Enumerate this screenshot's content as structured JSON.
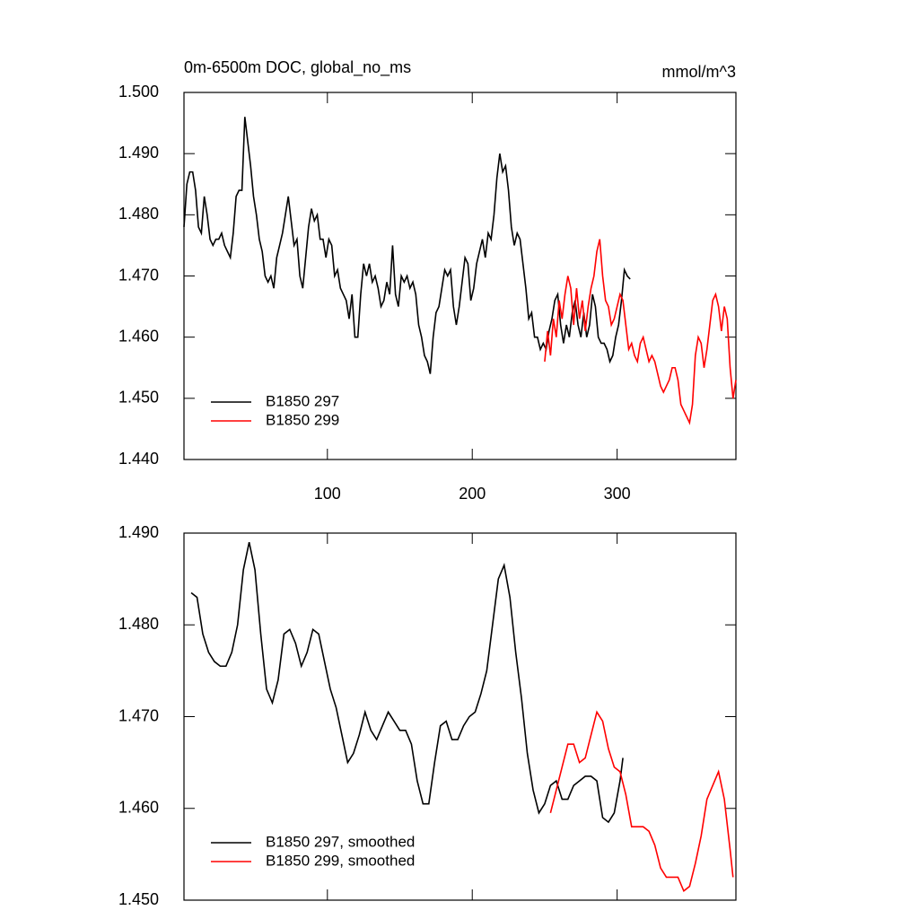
{
  "chart_data": [
    {
      "type": "line",
      "title": "0m-6500m DOC, global_no_ms",
      "subtitle": "mmol/m^3",
      "xlim": [
        1,
        382
      ],
      "xticks": [
        100,
        200,
        300
      ],
      "ylim": [
        1.44,
        1.5
      ],
      "yticks": [
        {
          "value": 1.44,
          "label": "1.440"
        },
        {
          "value": 1.45,
          "label": "1.450"
        },
        {
          "value": 1.46,
          "label": "1.460"
        },
        {
          "value": 1.47,
          "label": "1.470"
        },
        {
          "value": 1.48,
          "label": "1.480"
        },
        {
          "value": 1.49,
          "label": "1.490"
        },
        {
          "value": 1.5,
          "label": "1.500"
        }
      ],
      "legend": "lower left",
      "series": [
        {
          "name": "B1850 297",
          "color": "#000000",
          "x": [
            1,
            3,
            5,
            7,
            9,
            11,
            13,
            15,
            17,
            19,
            21,
            23,
            25,
            27,
            29,
            31,
            33,
            35,
            37,
            39,
            41,
            43,
            45,
            47,
            49,
            51,
            53,
            55,
            57,
            59,
            61,
            63,
            65,
            67,
            69,
            71,
            73,
            75,
            77,
            79,
            81,
            83,
            85,
            87,
            89,
            91,
            93,
            95,
            97,
            99,
            101,
            103,
            105,
            107,
            109,
            111,
            113,
            115,
            117,
            119,
            121,
            123,
            125,
            127,
            129,
            131,
            133,
            135,
            137,
            139,
            141,
            143,
            145,
            147,
            149,
            151,
            153,
            155,
            157,
            159,
            161,
            163,
            165,
            167,
            169,
            171,
            173,
            175,
            177,
            179,
            181,
            183,
            185,
            187,
            189,
            191,
            193,
            195,
            197,
            199,
            201,
            203,
            205,
            207,
            209,
            211,
            213,
            215,
            217,
            219,
            221,
            223,
            225,
            227,
            229,
            231,
            233,
            235,
            237,
            239,
            241,
            243,
            245,
            247,
            249,
            251,
            253,
            255,
            257,
            259,
            261,
            263,
            265,
            267,
            269,
            271,
            273,
            275,
            277,
            279,
            281,
            283,
            285,
            287,
            289,
            291,
            293,
            295,
            297,
            299,
            301,
            303,
            305,
            307,
            309
          ],
          "values": [
            1.478,
            1.485,
            1.487,
            1.487,
            1.484,
            1.478,
            1.477,
            1.483,
            1.48,
            1.476,
            1.475,
            1.476,
            1.476,
            1.477,
            1.475,
            1.474,
            1.473,
            1.477,
            1.483,
            1.484,
            1.484,
            1.496,
            1.492,
            1.488,
            1.483,
            1.48,
            1.476,
            1.474,
            1.47,
            1.469,
            1.47,
            1.468,
            1.473,
            1.475,
            1.477,
            1.48,
            1.483,
            1.479,
            1.475,
            1.476,
            1.47,
            1.468,
            1.473,
            1.478,
            1.481,
            1.479,
            1.48,
            1.476,
            1.476,
            1.473,
            1.476,
            1.475,
            1.47,
            1.471,
            1.468,
            1.467,
            1.466,
            1.463,
            1.467,
            1.46,
            1.46,
            1.467,
            1.472,
            1.47,
            1.472,
            1.469,
            1.47,
            1.468,
            1.465,
            1.466,
            1.469,
            1.467,
            1.475,
            1.467,
            1.465,
            1.47,
            1.469,
            1.47,
            1.468,
            1.469,
            1.467,
            1.462,
            1.46,
            1.457,
            1.456,
            1.454,
            1.46,
            1.464,
            1.465,
            1.468,
            1.471,
            1.47,
            1.471,
            1.465,
            1.462,
            1.465,
            1.469,
            1.473,
            1.472,
            1.466,
            1.468,
            1.472,
            1.474,
            1.476,
            1.473,
            1.477,
            1.476,
            1.48,
            1.486,
            1.49,
            1.487,
            1.488,
            1.484,
            1.478,
            1.475,
            1.477,
            1.476,
            1.472,
            1.468,
            1.463,
            1.464,
            1.46,
            1.46,
            1.458,
            1.459,
            1.458,
            1.461,
            1.463,
            1.466,
            1.467,
            1.462,
            1.459,
            1.462,
            1.46,
            1.464,
            1.466,
            1.462,
            1.46,
            1.464,
            1.46,
            1.462,
            1.467,
            1.465,
            1.46,
            1.459,
            1.459,
            1.458,
            1.456,
            1.457,
            1.46,
            1.462,
            1.466,
            1.471,
            1.47,
            1.4695
          ]
        },
        {
          "name": "B1850 299",
          "color": "#ff0000",
          "x": [
            250,
            252,
            254,
            256,
            258,
            260,
            262,
            264,
            266,
            268,
            270,
            272,
            274,
            276,
            278,
            280,
            282,
            284,
            286,
            288,
            290,
            292,
            294,
            296,
            298,
            300,
            302,
            304,
            306,
            308,
            310,
            312,
            314,
            316,
            318,
            320,
            322,
            324,
            326,
            328,
            330,
            332,
            334,
            336,
            338,
            340,
            342,
            344,
            346,
            348,
            350,
            352,
            354,
            356,
            358,
            360,
            362,
            364,
            366,
            368,
            370,
            372,
            374,
            376,
            378,
            380,
            382
          ],
          "values": [
            1.456,
            1.461,
            1.457,
            1.463,
            1.46,
            1.466,
            1.463,
            1.467,
            1.47,
            1.468,
            1.462,
            1.468,
            1.463,
            1.466,
            1.461,
            1.465,
            1.468,
            1.47,
            1.474,
            1.476,
            1.47,
            1.466,
            1.465,
            1.462,
            1.463,
            1.465,
            1.467,
            1.466,
            1.462,
            1.458,
            1.459,
            1.457,
            1.456,
            1.459,
            1.46,
            1.458,
            1.456,
            1.457,
            1.456,
            1.454,
            1.452,
            1.451,
            1.452,
            1.453,
            1.455,
            1.455,
            1.453,
            1.449,
            1.448,
            1.447,
            1.446,
            1.449,
            1.457,
            1.46,
            1.459,
            1.455,
            1.458,
            1.462,
            1.466,
            1.467,
            1.465,
            1.461,
            1.465,
            1.463,
            1.455,
            1.45,
            1.453
          ]
        }
      ]
    },
    {
      "type": "line",
      "xlim": [
        1,
        382
      ],
      "ylim": [
        1.45,
        1.49
      ],
      "yticks": [
        {
          "value": 1.45,
          "label": "1.450"
        },
        {
          "value": 1.46,
          "label": "1.460"
        },
        {
          "value": 1.47,
          "label": "1.470"
        },
        {
          "value": 1.48,
          "label": "1.480"
        },
        {
          "value": 1.49,
          "label": "1.490"
        }
      ],
      "legend": "lower left",
      "series": [
        {
          "name": "B1850 297, smoothed",
          "color": "#000000",
          "x": [
            6,
            10,
            14,
            18,
            22,
            26,
            30,
            34,
            38,
            42,
            46,
            50,
            54,
            58,
            62,
            66,
            70,
            74,
            78,
            82,
            86,
            90,
            94,
            98,
            102,
            106,
            110,
            114,
            118,
            122,
            126,
            130,
            134,
            138,
            142,
            146,
            150,
            154,
            158,
            162,
            166,
            170,
            174,
            178,
            182,
            186,
            190,
            194,
            198,
            202,
            206,
            210,
            214,
            218,
            222,
            226,
            230,
            234,
            238,
            242,
            246,
            250,
            254,
            258,
            262,
            266,
            270,
            274,
            278,
            282,
            286,
            290,
            294,
            298,
            302,
            304
          ],
          "values": [
            1.4835,
            1.483,
            1.479,
            1.477,
            1.476,
            1.4755,
            1.4755,
            1.477,
            1.48,
            1.486,
            1.489,
            1.486,
            1.479,
            1.473,
            1.4715,
            1.474,
            1.479,
            1.4795,
            1.478,
            1.4755,
            1.477,
            1.4795,
            1.479,
            1.476,
            1.473,
            1.471,
            1.468,
            1.465,
            1.466,
            1.468,
            1.4705,
            1.4685,
            1.4675,
            1.469,
            1.4705,
            1.4695,
            1.4685,
            1.4685,
            1.467,
            1.463,
            1.4605,
            1.4605,
            1.465,
            1.469,
            1.4695,
            1.4675,
            1.4675,
            1.469,
            1.47,
            1.4705,
            1.4725,
            1.475,
            1.48,
            1.485,
            1.4865,
            1.483,
            1.477,
            1.472,
            1.466,
            1.462,
            1.4595,
            1.4605,
            1.4625,
            1.463,
            1.461,
            1.461,
            1.4625,
            1.463,
            1.4635,
            1.4635,
            1.463,
            1.459,
            1.4585,
            1.4595,
            1.463,
            1.4655
          ]
        },
        {
          "name": "B1850 299, smoothed",
          "color": "#ff0000",
          "x": [
            254,
            258,
            262,
            266,
            270,
            274,
            278,
            282,
            286,
            290,
            294,
            298,
            302,
            306,
            310,
            314,
            318,
            322,
            326,
            330,
            334,
            338,
            342,
            346,
            350,
            354,
            358,
            362,
            366,
            370,
            374,
            378,
            380
          ],
          "values": [
            1.4595,
            1.462,
            1.4645,
            1.467,
            1.467,
            1.465,
            1.4655,
            1.468,
            1.4705,
            1.4695,
            1.4665,
            1.4645,
            1.464,
            1.4615,
            1.458,
            1.458,
            1.458,
            1.4575,
            1.456,
            1.4535,
            1.4525,
            1.4525,
            1.4525,
            1.451,
            1.4515,
            1.454,
            1.457,
            1.461,
            1.4625,
            1.464,
            1.461,
            1.4555,
            1.4525
          ]
        }
      ]
    }
  ]
}
